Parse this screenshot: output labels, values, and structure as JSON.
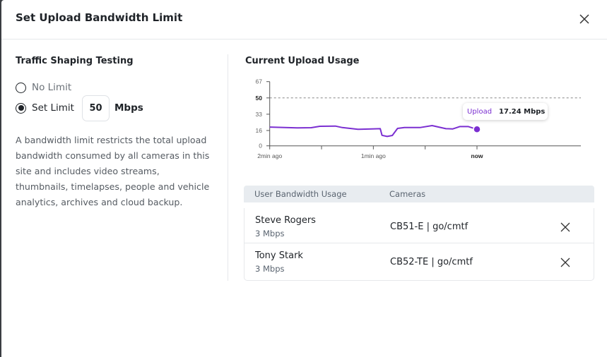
{
  "dialog": {
    "title": "Set Upload Bandwidth Limit"
  },
  "left": {
    "heading": "Traffic Shaping Testing",
    "options": [
      {
        "label": "No Limit",
        "selected": false
      },
      {
        "label": "Set Limit",
        "selected": true
      }
    ],
    "limit_value": "50",
    "limit_unit": "Mbps",
    "description": "A bandwidth limit restricts the total upload bandwidth consumed by all cameras in this site and includes video streams, thumbnails, timelapses, people and vehicle analytics, archives and cloud backup."
  },
  "right": {
    "heading": "Current Upload Usage",
    "tooltip": {
      "label": "Upload",
      "value": "17.24 Mbps"
    },
    "table": {
      "headers": [
        "User Bandwidth Usage",
        "Cameras"
      ],
      "rows": [
        {
          "name": "Steve Rogers",
          "usage": "3 Mbps",
          "camera": "CB51-E | go/cmtf"
        },
        {
          "name": "Tony Stark",
          "usage": "3 Mbps",
          "camera": "CB52-TE | go/cmtf"
        }
      ]
    }
  },
  "chart_data": {
    "type": "line",
    "ylim": [
      0,
      67
    ],
    "yticks": [
      "0",
      "16",
      "33",
      "50",
      "67"
    ],
    "xticks": [
      "2min ago",
      "1min ago",
      "now"
    ],
    "limit_line": 50,
    "color": "#7b2fd1",
    "x_unit": "seconds relative to now",
    "series": [
      {
        "x": [
          -120,
          -104,
          -96,
          -91,
          -82,
          -78,
          -69,
          -61,
          -56,
          -55,
          -52,
          -49,
          -46,
          -42,
          -33,
          -26,
          -18,
          -14,
          -10,
          -5,
          0
        ],
        "values": [
          19.6,
          18.7,
          18.9,
          20.4,
          20.6,
          19.1,
          17.2,
          17.7,
          17.9,
          11.0,
          9.8,
          10.8,
          18.2,
          19.1,
          19.1,
          21.1,
          17.9,
          17.7,
          20.1,
          20.1,
          17.24
        ]
      }
    ]
  }
}
